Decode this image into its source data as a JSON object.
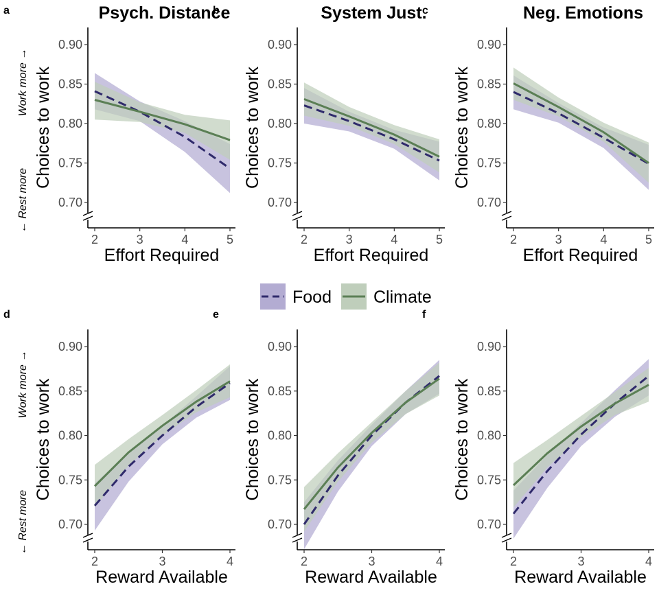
{
  "legend": {
    "food_label": "Food",
    "climate_label": "Climate",
    "food_color": "#2f2a6b",
    "food_band": "#b3acd2",
    "climate_color": "#5b7f55",
    "climate_band": "#bfcebb"
  },
  "side_labels": {
    "top": "Work more →",
    "bottom": "← Rest more"
  },
  "chart_data": [
    {
      "panel": "a",
      "type": "line",
      "title": "Psych. Distance",
      "xlabel": "Effort Required",
      "ylabel": "Choices to work",
      "xlim": [
        2,
        5
      ],
      "ylim": [
        0.7,
        0.9
      ],
      "xticks": [
        "2",
        "3",
        "4",
        "5"
      ],
      "yticks": [
        "0.70",
        "0.75",
        "0.80",
        "0.85",
        "0.90"
      ],
      "x": [
        2,
        3,
        4,
        5
      ],
      "series": [
        {
          "name": "Food",
          "values": [
            0.841,
            0.815,
            0.783,
            0.743
          ],
          "lower": [
            0.818,
            0.803,
            0.764,
            0.712
          ],
          "upper": [
            0.864,
            0.828,
            0.803,
            0.774
          ]
        },
        {
          "name": "Climate",
          "values": [
            0.83,
            0.815,
            0.799,
            0.779
          ],
          "lower": [
            0.805,
            0.802,
            0.788,
            0.754
          ],
          "upper": [
            0.853,
            0.827,
            0.811,
            0.804
          ]
        }
      ]
    },
    {
      "panel": "b",
      "type": "line",
      "title": "System Just.",
      "xlabel": "Effort Required",
      "ylabel": "Choices to work",
      "xlim": [
        2,
        5
      ],
      "ylim": [
        0.7,
        0.9
      ],
      "xticks": [
        "2",
        "3",
        "4",
        "5"
      ],
      "yticks": [
        "0.70",
        "0.75",
        "0.80",
        "0.85",
        "0.90"
      ],
      "x": [
        2,
        3,
        4,
        5
      ],
      "series": [
        {
          "name": "Food",
          "values": [
            0.823,
            0.803,
            0.78,
            0.753
          ],
          "lower": [
            0.8,
            0.79,
            0.768,
            0.728
          ],
          "upper": [
            0.845,
            0.815,
            0.792,
            0.777
          ]
        },
        {
          "name": "Climate",
          "values": [
            0.831,
            0.809,
            0.786,
            0.758
          ],
          "lower": [
            0.81,
            0.797,
            0.774,
            0.738
          ],
          "upper": [
            0.852,
            0.821,
            0.798,
            0.78
          ]
        }
      ]
    },
    {
      "panel": "c",
      "type": "line",
      "title": "Neg. Emotions",
      "xlabel": "Effort Required",
      "ylabel": "Choices to work",
      "xlim": [
        2,
        5
      ],
      "ylim": [
        0.7,
        0.9
      ],
      "xticks": [
        "2",
        "3",
        "4",
        "5"
      ],
      "yticks": [
        "0.70",
        "0.75",
        "0.80",
        "0.85",
        "0.90"
      ],
      "x": [
        2,
        3,
        4,
        5
      ],
      "series": [
        {
          "name": "Food",
          "values": [
            0.84,
            0.813,
            0.782,
            0.749
          ],
          "lower": [
            0.818,
            0.801,
            0.769,
            0.716
          ],
          "upper": [
            0.861,
            0.826,
            0.795,
            0.773
          ]
        },
        {
          "name": "Climate",
          "values": [
            0.851,
            0.821,
            0.789,
            0.75
          ],
          "lower": [
            0.83,
            0.809,
            0.777,
            0.725
          ],
          "upper": [
            0.871,
            0.833,
            0.801,
            0.776
          ]
        }
      ]
    },
    {
      "panel": "d",
      "type": "line",
      "title": "",
      "xlabel": "Reward Available",
      "ylabel": "Choices to work",
      "xlim": [
        2,
        4
      ],
      "ylim": [
        0.7,
        0.9
      ],
      "xticks": [
        "2",
        "3",
        "4"
      ],
      "yticks": [
        "0.70",
        "0.75",
        "0.80",
        "0.85",
        "0.90"
      ],
      "x": [
        2,
        2.5,
        3,
        3.5,
        4
      ],
      "series": [
        {
          "name": "Food",
          "values": [
            0.721,
            0.765,
            0.8,
            0.832,
            0.859
          ],
          "lower": [
            0.693,
            0.748,
            0.79,
            0.82,
            0.84
          ],
          "upper": [
            0.746,
            0.781,
            0.811,
            0.844,
            0.878
          ]
        },
        {
          "name": "Climate",
          "values": [
            0.743,
            0.781,
            0.811,
            0.838,
            0.861
          ],
          "lower": [
            0.719,
            0.766,
            0.8,
            0.826,
            0.843
          ],
          "upper": [
            0.767,
            0.796,
            0.823,
            0.851,
            0.88
          ]
        }
      ]
    },
    {
      "panel": "e",
      "type": "line",
      "title": "",
      "xlabel": "Reward Available",
      "ylabel": "Choices to work",
      "xlim": [
        2,
        4
      ],
      "ylim": [
        0.7,
        0.9
      ],
      "xticks": [
        "2",
        "3",
        "4"
      ],
      "yticks": [
        "0.70",
        "0.75",
        "0.80",
        "0.85",
        "0.90"
      ],
      "x": [
        2,
        2.5,
        3,
        3.5,
        4
      ],
      "series": [
        {
          "name": "Food",
          "values": [
            0.7,
            0.755,
            0.8,
            0.837,
            0.867
          ],
          "lower": [
            0.672,
            0.737,
            0.788,
            0.824,
            0.847
          ],
          "upper": [
            0.725,
            0.772,
            0.812,
            0.85,
            0.885
          ]
        },
        {
          "name": "Climate",
          "values": [
            0.717,
            0.764,
            0.803,
            0.837,
            0.864
          ],
          "lower": [
            0.692,
            0.748,
            0.792,
            0.824,
            0.845
          ],
          "upper": [
            0.742,
            0.78,
            0.815,
            0.85,
            0.882
          ]
        }
      ]
    },
    {
      "panel": "f",
      "type": "line",
      "title": "",
      "xlabel": "Reward Available",
      "ylabel": "Choices to work",
      "xlim": [
        2,
        4
      ],
      "ylim": [
        0.7,
        0.9
      ],
      "xticks": [
        "2",
        "3",
        "4"
      ],
      "yticks": [
        "0.70",
        "0.75",
        "0.80",
        "0.85",
        "0.90"
      ],
      "x": [
        2,
        2.5,
        3,
        3.5,
        4
      ],
      "series": [
        {
          "name": "Food",
          "values": [
            0.712,
            0.76,
            0.801,
            0.836,
            0.867
          ],
          "lower": [
            0.684,
            0.741,
            0.788,
            0.821,
            0.845
          ],
          "upper": [
            0.738,
            0.778,
            0.814,
            0.851,
            0.886
          ]
        },
        {
          "name": "Climate",
          "values": [
            0.744,
            0.78,
            0.81,
            0.836,
            0.857
          ],
          "lower": [
            0.719,
            0.764,
            0.798,
            0.823,
            0.838
          ],
          "upper": [
            0.769,
            0.795,
            0.822,
            0.849,
            0.876
          ]
        }
      ]
    }
  ]
}
